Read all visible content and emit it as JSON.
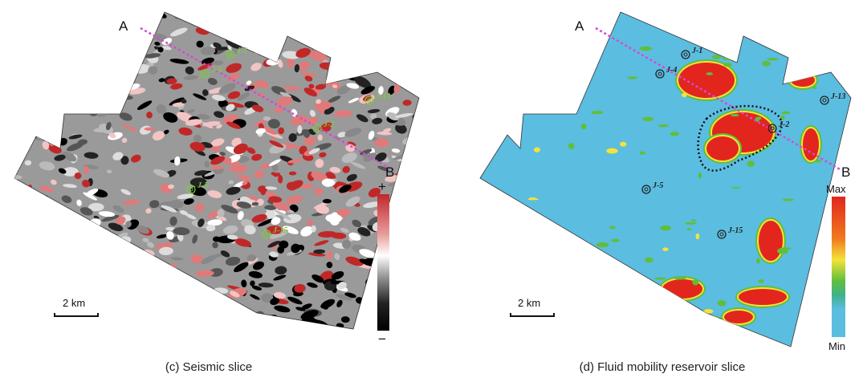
{
  "panels": [
    {
      "caption": "(c) Seismic slice",
      "section_line": {
        "start": "A",
        "end": "B"
      },
      "wells": [
        "J-1",
        "J-4",
        "J-13",
        "J-2",
        "J-5",
        "J-15"
      ],
      "scale_bar": "2 km",
      "color_bar": {
        "top": "+",
        "bottom": "−"
      }
    },
    {
      "caption": "(d) Fluid mobility reservoir slice",
      "section_line": {
        "start": "A",
        "end": "B"
      },
      "wells": [
        "J-1",
        "J-4",
        "J-13",
        "J-2",
        "J-5",
        "J-15"
      ],
      "scale_bar": "2 km",
      "color_bar": {
        "top": "Max",
        "bottom": "Min"
      }
    }
  ]
}
